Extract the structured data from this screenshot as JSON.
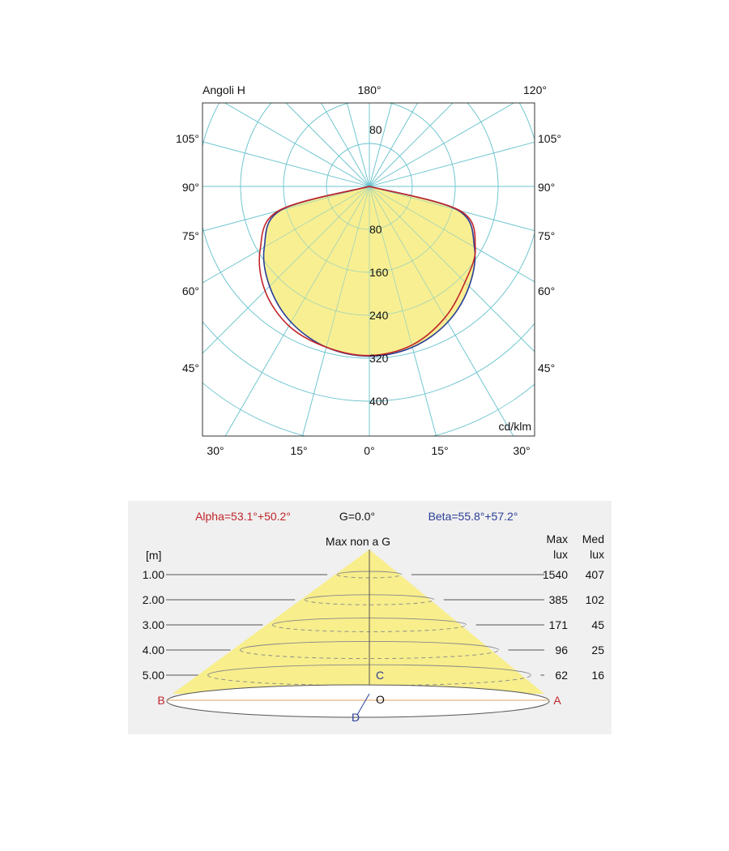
{
  "polar": {
    "corner_label": "Angoli H",
    "unit": "cd/klm",
    "top_labels": [
      "180°",
      "120°"
    ],
    "left_angle_labels": [
      "105°",
      "90°",
      "75°",
      "60°",
      "45°"
    ],
    "right_angle_labels": [
      "105°",
      "90°",
      "75°",
      "60°",
      "45°"
    ],
    "bottom_labels": [
      "30°",
      "15°",
      "0°",
      "15°",
      "30°"
    ],
    "upper_radial_label": "80",
    "radial_labels": [
      "80",
      "160",
      "240",
      "320",
      "400"
    ],
    "colors": {
      "fill": "#f8ee8c",
      "curve_c0": "#c0252a",
      "curve_c90": "#2a3e96",
      "grid": "#6cc4cf"
    }
  },
  "chart_data": {
    "type": "polar",
    "unit": "cd/klm",
    "radial_max": 400,
    "radial_ticks": [
      80,
      160,
      240,
      320,
      400
    ],
    "series": [
      {
        "color": "#c0252a",
        "angles": [
          0,
          15,
          30,
          45,
          60,
          75,
          90
        ],
        "values_left": [
          315,
          310,
          300,
          275,
          235,
          175,
          0
        ],
        "values_right": [
          315,
          306,
          282,
          252,
          228,
          175,
          0
        ]
      },
      {
        "color": "#2a3e96",
        "angles": [
          0,
          15,
          30,
          45,
          60,
          75,
          90
        ],
        "values_left": [
          316,
          310,
          292,
          263,
          226,
          170,
          0
        ],
        "values_right": [
          316,
          310,
          292,
          263,
          226,
          170,
          0
        ]
      }
    ]
  },
  "cone": {
    "alpha": "Alpha=53.1°+50.2°",
    "g": "G=0.0°",
    "beta": "Beta=55.8°+57.2°",
    "max_label": "Max non a G",
    "col_max": [
      "Max",
      "lux"
    ],
    "col_med": [
      "Med",
      "lux"
    ],
    "unit": "[m]",
    "rows": [
      {
        "dist": "1.00",
        "max": "1540",
        "med": "407"
      },
      {
        "dist": "2.00",
        "max": "385",
        "med": "102"
      },
      {
        "dist": "3.00",
        "max": "171",
        "med": "45"
      },
      {
        "dist": "4.00",
        "max": "96",
        "med": "25"
      },
      {
        "dist": "5.00",
        "max": "62",
        "med": "16"
      }
    ],
    "points": {
      "a": "A",
      "b": "B",
      "c": "C",
      "d": "D",
      "o": "O"
    },
    "colors": {
      "alpha": "#c0252a",
      "beta": "#2a3e96",
      "panel": "#f0f0f0",
      "cone": "#f8ee8c"
    }
  }
}
